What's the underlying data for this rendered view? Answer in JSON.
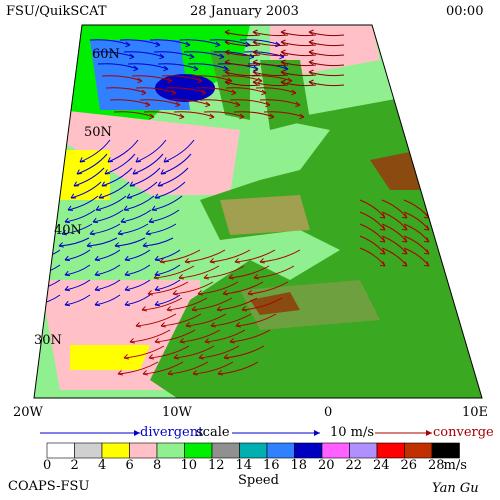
{
  "header": {
    "left": "FSU/QuikSCAT",
    "title": "28 January 2003",
    "right": "00:00"
  },
  "map": {
    "lat_labels": [
      "60N",
      "50N",
      "40N",
      "30N"
    ],
    "lon_labels": [
      "20W",
      "10W",
      "0",
      "10E"
    ]
  },
  "legend": {
    "divergent": "divergent",
    "scale": "scale",
    "scale_value": "10 m/s",
    "converge": "converge"
  },
  "colorbar": {
    "labels": [
      "0",
      "2",
      "4",
      "6",
      "8",
      "10",
      "12",
      "14",
      "16",
      "18",
      "20",
      "22",
      "24",
      "26",
      "28"
    ],
    "unit": "m/s",
    "title": "Speed",
    "colors": [
      "#ffffff",
      "#d0d0d0",
      "#ffff00",
      "#ffc0c8",
      "#90f090",
      "#00ee00",
      "#909090",
      "#00b0b0",
      "#3080ff",
      "#0000c0",
      "#ff60ff",
      "#b090ff",
      "#ff0000",
      "#c03000",
      "#000000"
    ]
  },
  "footer": {
    "left": "COAPS-FSU",
    "right": "Yan Gu"
  }
}
